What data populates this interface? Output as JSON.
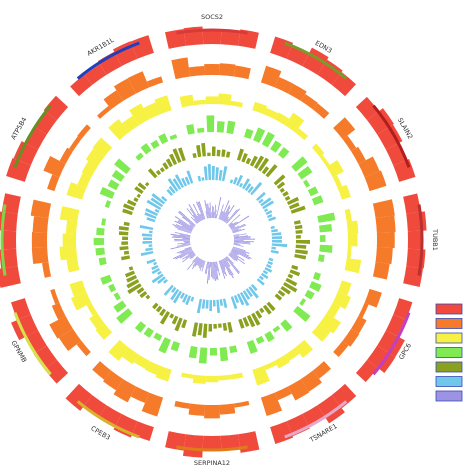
{
  "chart_data": {
    "type": "circular-bar",
    "description_visible": "Circos-style circular barplot; concentric tracks of bars per gene segment",
    "genes": [
      {
        "name": "SOCS2",
        "color": "#d83a3a"
      },
      {
        "name": "EDN3",
        "color": "#7c9a2a"
      },
      {
        "name": "SLAIN2",
        "color": "#b31d1d"
      },
      {
        "name": "TUBB1",
        "color": "#bb3030"
      },
      {
        "name": "GPC6",
        "color": "#c23fc2"
      },
      {
        "name": "TSNARE1",
        "color": "#e8a7c8"
      },
      {
        "name": "SERPINA12",
        "color": "#e07b1a"
      },
      {
        "name": "CPEB3",
        "color": "#d9b22a"
      },
      {
        "name": "GPNMB",
        "color": "#d8e04a"
      },
      {
        "name": "",
        "color": "#7fd44a"
      },
      {
        "name": "ATP5B4",
        "color": "#6b8e23"
      },
      {
        "name": "AKR1B1L",
        "color": "#1f3fbf"
      }
    ],
    "tracks": [
      {
        "color": "#ef4a3c"
      },
      {
        "color": "#f57a2a"
      },
      {
        "color": "#f6f143"
      },
      {
        "color": "#7fea52"
      },
      {
        "color": "#8aa01f"
      },
      {
        "color": "#6fc7ea"
      },
      {
        "color": "#9c93e4"
      }
    ],
    "legend": {
      "placement": "right",
      "entries": [
        "",
        "",
        "",
        "",
        "",
        "",
        ""
      ]
    }
  }
}
